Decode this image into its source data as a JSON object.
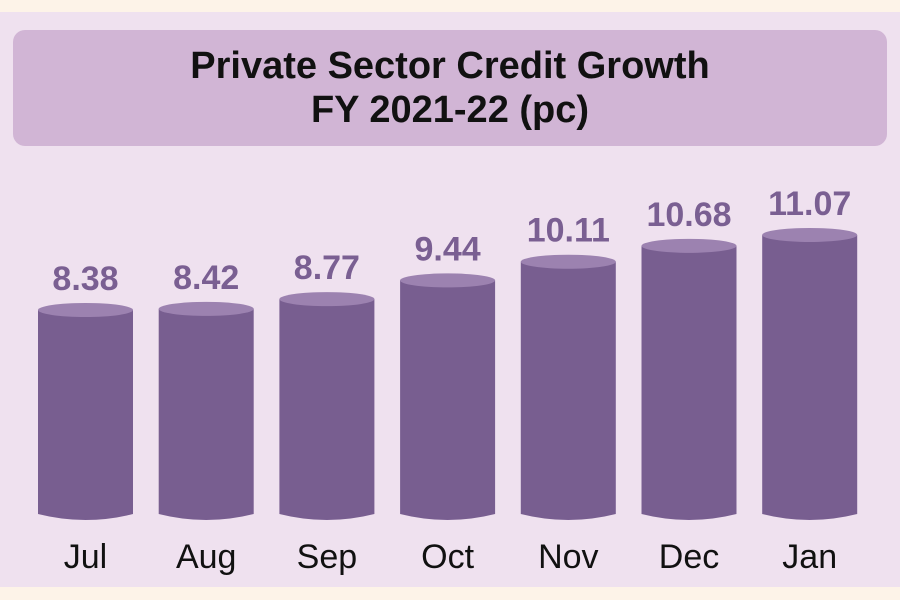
{
  "chart_data": {
    "type": "bar",
    "title": "Private Sector Credit Growth",
    "subtitle": "FY 2021-22 (pc)",
    "categories": [
      "Jul",
      "Aug",
      "Sep",
      "Oct",
      "Nov",
      "Dec",
      "Jan"
    ],
    "values": [
      8.38,
      8.42,
      8.77,
      9.44,
      10.11,
      10.68,
      11.07
    ],
    "value_labels": [
      "8.38",
      "8.42",
      "8.77",
      "9.44",
      "10.11",
      "10.68",
      "11.07"
    ],
    "xlabel": "",
    "ylabel": "",
    "grid": false,
    "legend": "none",
    "colors": {
      "bar": "#785e90",
      "bar_top": "#9c82b0",
      "label": "#7a5f92",
      "title_box": "#d1b5d5"
    }
  }
}
